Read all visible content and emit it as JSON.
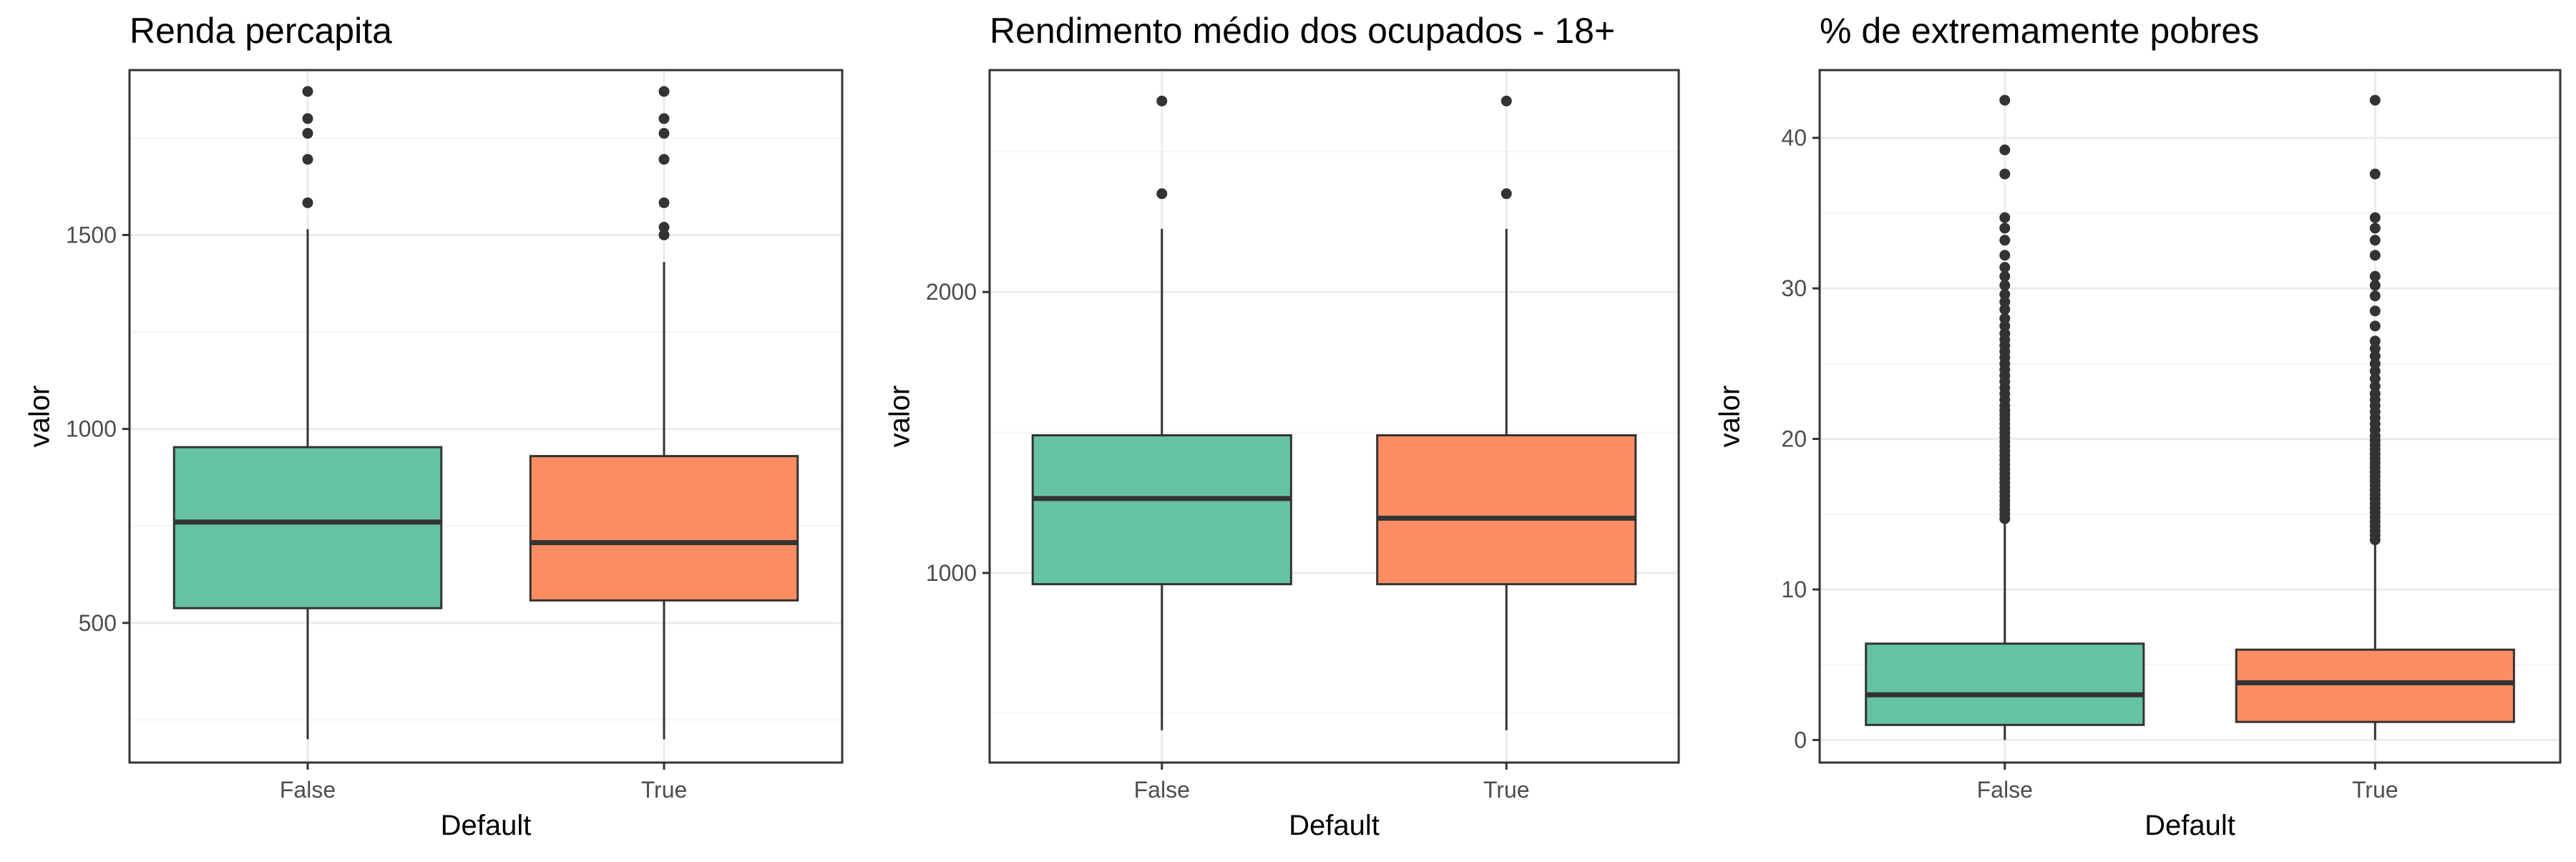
{
  "colors": {
    "false_fill": "#66C2A5",
    "true_fill": "#FC8D62",
    "outline": "#333333",
    "grid_major": "#EBEBEB",
    "grid_minor": "#F5F5F5",
    "panel_border": "#333333",
    "tick_text": "#4D4D4D",
    "title_text": "#000000"
  },
  "chart_data": [
    {
      "type": "box",
      "title": "Renda percapita",
      "xlabel": "Default",
      "ylabel": "valor",
      "categories": [
        "False",
        "True"
      ],
      "ylim": [
        140,
        1925
      ],
      "yticks": [
        500,
        1000,
        1500
      ],
      "ytick_labels": [
        "500",
        "1000",
        "1500"
      ],
      "grid": true,
      "boxes": [
        {
          "category": "False",
          "whisker_low": 200,
          "q1": 538,
          "median": 760,
          "q3": 953,
          "whisker_high": 1515,
          "outliers": [
            1583,
            1695,
            1762,
            1800,
            1870
          ]
        },
        {
          "category": "True",
          "whisker_low": 200,
          "q1": 558,
          "median": 707,
          "q3": 930,
          "whisker_high": 1430,
          "outliers": [
            1500,
            1520,
            1583,
            1695,
            1762,
            1800,
            1870
          ]
        }
      ]
    },
    {
      "type": "box",
      "title": "Rendimento médio dos ocupados - 18+",
      "xlabel": "Default",
      "ylabel": "valor",
      "categories": [
        "False",
        "True"
      ],
      "ylim": [
        325,
        2790
      ],
      "yticks": [
        1000,
        2000
      ],
      "ytick_labels": [
        "1000",
        "2000"
      ],
      "grid": true,
      "boxes": [
        {
          "category": "False",
          "whisker_low": 440,
          "q1": 960,
          "median": 1265,
          "q3": 1490,
          "whisker_high": 2225,
          "outliers": [
            2350,
            2680
          ]
        },
        {
          "category": "True",
          "whisker_low": 440,
          "q1": 960,
          "median": 1195,
          "q3": 1490,
          "whisker_high": 2225,
          "outliers": [
            2350,
            2680
          ]
        }
      ]
    },
    {
      "type": "box",
      "title": "% de extremamente pobres",
      "xlabel": "Default",
      "ylabel": "valor",
      "categories": [
        "False",
        "True"
      ],
      "ylim": [
        -1.5,
        44.5
      ],
      "yticks": [
        0,
        10,
        20,
        30,
        40
      ],
      "ytick_labels": [
        "0",
        "10",
        "20",
        "30",
        "40"
      ],
      "grid": true,
      "boxes": [
        {
          "category": "False",
          "whisker_low": 0,
          "q1": 1.0,
          "median": 3.0,
          "q3": 6.4,
          "whisker_high": 14.5,
          "outliers": [
            14.7,
            15.0,
            15.3,
            15.6,
            15.9,
            16.2,
            16.5,
            16.8,
            17.1,
            17.4,
            17.7,
            18.0,
            18.3,
            18.6,
            18.9,
            19.2,
            19.5,
            19.8,
            20.1,
            20.4,
            20.7,
            21.0,
            21.3,
            21.6,
            21.9,
            22.2,
            22.6,
            23.0,
            23.4,
            23.8,
            24.2,
            24.6,
            25.0,
            25.4,
            25.8,
            26.2,
            26.6,
            27.0,
            27.5,
            28.0,
            28.6,
            29.1,
            29.6,
            30.2,
            30.8,
            31.4,
            32.2,
            33.2,
            34.0,
            34.7,
            37.6,
            39.2,
            42.5
          ]
        },
        {
          "category": "True",
          "whisker_low": 0,
          "q1": 1.2,
          "median": 3.8,
          "q3": 6.0,
          "whisker_high": 13.0,
          "outliers": [
            13.3,
            13.6,
            13.9,
            14.2,
            14.5,
            14.8,
            15.1,
            15.4,
            15.7,
            16.0,
            16.3,
            16.6,
            16.9,
            17.2,
            17.5,
            17.8,
            18.1,
            18.4,
            18.7,
            19.0,
            19.3,
            19.6,
            19.9,
            20.2,
            20.6,
            21.0,
            21.4,
            21.8,
            22.2,
            22.6,
            23.0,
            23.5,
            24.0,
            24.5,
            25.0,
            25.5,
            26.0,
            26.5,
            27.5,
            28.5,
            29.5,
            30.2,
            30.8,
            32.2,
            33.2,
            34.0,
            34.7,
            37.6,
            42.5
          ]
        }
      ]
    }
  ]
}
